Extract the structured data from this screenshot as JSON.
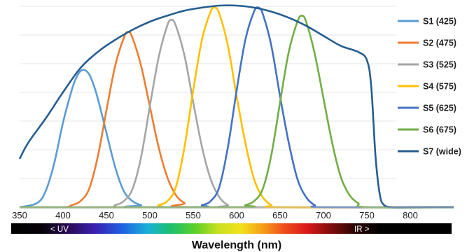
{
  "chart_data": {
    "type": "line",
    "title": "",
    "xlabel": "Wavelength (nm)",
    "ylabel": "",
    "xlim": [
      350,
      850
    ],
    "ylim": [
      0,
      1.0
    ],
    "grid": true,
    "legend_position": "right",
    "x_ticks": [
      "350",
      "400",
      "450",
      "500",
      "550",
      "600",
      "650",
      "700",
      "750",
      "800"
    ],
    "band_labels": {
      "left": "< UV",
      "right": "IR >"
    },
    "series": [
      {
        "name": "S1 (425)",
        "color": "#5b9bd5",
        "x": [
          350,
          370,
          380,
          390,
          400,
          410,
          415,
          420,
          425,
          430,
          435,
          440,
          450,
          460,
          470,
          480,
          490,
          500,
          850
        ],
        "y": [
          0.0,
          0.02,
          0.08,
          0.22,
          0.42,
          0.58,
          0.64,
          0.675,
          0.68,
          0.66,
          0.61,
          0.54,
          0.37,
          0.2,
          0.08,
          0.03,
          0.01,
          0.0,
          0.0
        ]
      },
      {
        "name": "S2 (475)",
        "color": "#ed7d31",
        "x": [
          350,
          400,
          410,
          420,
          430,
          440,
          450,
          460,
          470,
          475,
          480,
          490,
          500,
          510,
          520,
          530,
          540,
          550,
          850
        ],
        "y": [
          0.0,
          0.0,
          0.01,
          0.03,
          0.09,
          0.25,
          0.48,
          0.7,
          0.84,
          0.87,
          0.84,
          0.7,
          0.5,
          0.3,
          0.15,
          0.06,
          0.02,
          0.0,
          0.0
        ]
      },
      {
        "name": "S3 (525)",
        "color": "#a5a5a5",
        "x": [
          350,
          450,
          460,
          470,
          480,
          490,
          500,
          510,
          520,
          525,
          530,
          540,
          550,
          560,
          570,
          580,
          590,
          600,
          850
        ],
        "y": [
          0.0,
          0.0,
          0.01,
          0.03,
          0.09,
          0.25,
          0.5,
          0.74,
          0.9,
          0.93,
          0.9,
          0.75,
          0.52,
          0.3,
          0.14,
          0.05,
          0.01,
          0.0,
          0.0
        ]
      },
      {
        "name": "S4 (575)",
        "color": "#ffc000",
        "x": [
          350,
          500,
          510,
          520,
          530,
          540,
          550,
          560,
          570,
          575,
          580,
          590,
          600,
          610,
          620,
          630,
          640,
          650,
          850
        ],
        "y": [
          0.0,
          0.0,
          0.01,
          0.03,
          0.1,
          0.3,
          0.58,
          0.83,
          0.97,
          0.99,
          0.96,
          0.8,
          0.55,
          0.32,
          0.14,
          0.05,
          0.01,
          0.0,
          0.0
        ]
      },
      {
        "name": "S5 (625)",
        "color": "#4472c4",
        "x": [
          350,
          550,
          560,
          570,
          580,
          590,
          600,
          610,
          620,
          625,
          630,
          640,
          650,
          660,
          670,
          680,
          690,
          700,
          850
        ],
        "y": [
          0.0,
          0.0,
          0.01,
          0.03,
          0.1,
          0.3,
          0.58,
          0.83,
          0.97,
          0.99,
          0.96,
          0.8,
          0.55,
          0.32,
          0.14,
          0.05,
          0.01,
          0.0,
          0.0
        ]
      },
      {
        "name": "S6 (675)",
        "color": "#70ad47",
        "x": [
          350,
          600,
          610,
          620,
          630,
          640,
          650,
          660,
          670,
          675,
          680,
          690,
          700,
          710,
          720,
          730,
          740,
          750,
          850
        ],
        "y": [
          0.0,
          0.0,
          0.01,
          0.03,
          0.09,
          0.26,
          0.52,
          0.77,
          0.92,
          0.95,
          0.92,
          0.76,
          0.54,
          0.32,
          0.15,
          0.06,
          0.02,
          0.0,
          0.0
        ]
      },
      {
        "name": "S7 (wide)",
        "color": "#255e91",
        "x": [
          350,
          360,
          380,
          400,
          420,
          440,
          460,
          480,
          500,
          520,
          540,
          560,
          580,
          600,
          620,
          640,
          660,
          680,
          700,
          720,
          740,
          750,
          755,
          760,
          765,
          770,
          780,
          800,
          850
        ],
        "y": [
          0.24,
          0.32,
          0.44,
          0.57,
          0.69,
          0.77,
          0.83,
          0.88,
          0.92,
          0.95,
          0.975,
          0.99,
          1.0,
          1.0,
          0.99,
          0.97,
          0.94,
          0.9,
          0.85,
          0.8,
          0.77,
          0.73,
          0.6,
          0.25,
          0.06,
          0.01,
          0.0,
          0.0,
          0.0
        ]
      }
    ]
  }
}
